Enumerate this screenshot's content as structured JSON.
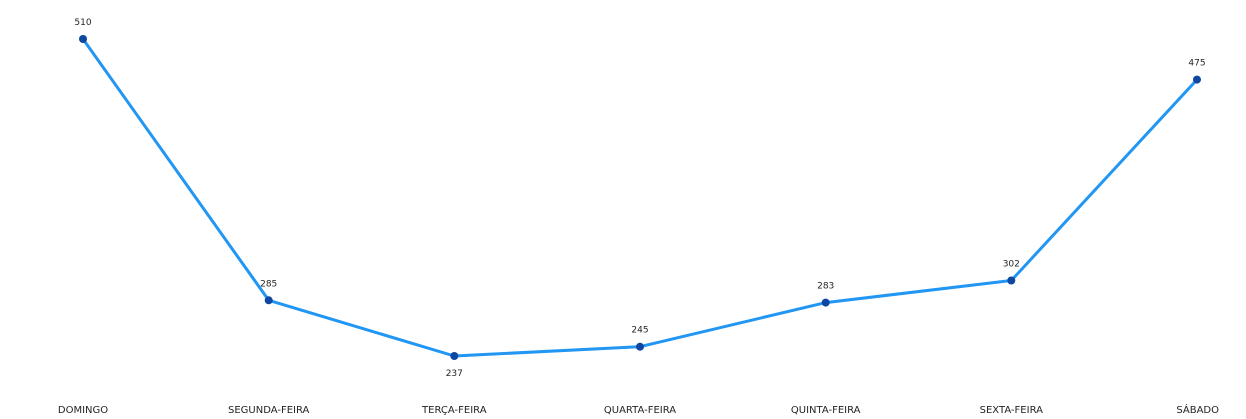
{
  "chart_data": {
    "type": "line",
    "title": "",
    "xlabel": "",
    "ylabel": "",
    "categories": [
      "DOMINGO",
      "SEGUNDA-FEIRA",
      "TERÇA-FEIRA",
      "QUARTA-FEIRA",
      "QUINTA-FEIRA",
      "SEXTA-FEIRA",
      "SÁBADO"
    ],
    "series": [
      {
        "values": [
          510,
          285,
          237,
          245,
          283,
          302,
          475
        ],
        "line_color": "#2196F3",
        "marker_color": "#0D47A1"
      }
    ],
    "ylim": [
      237,
      510
    ],
    "grid": false,
    "legend": "none",
    "data_labels": true
  }
}
